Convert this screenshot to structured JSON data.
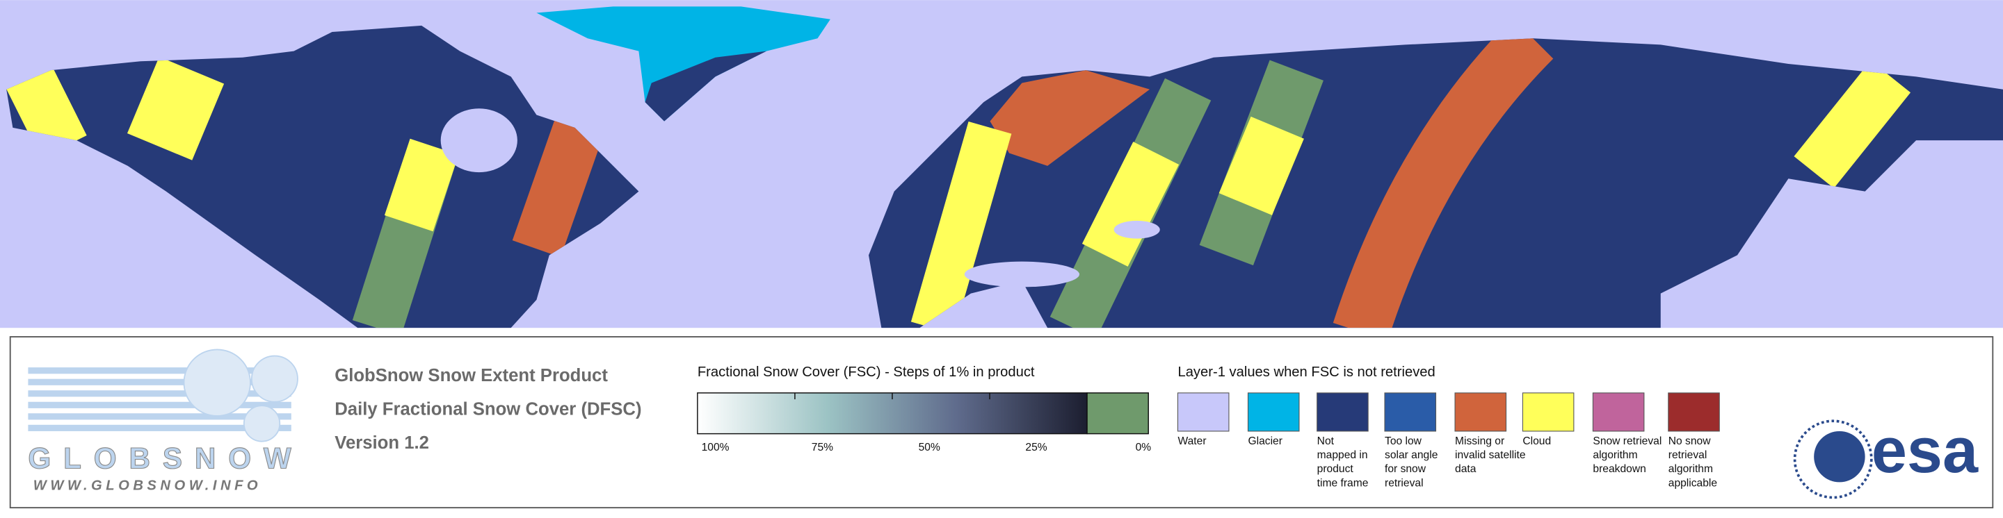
{
  "header": {
    "lines": [
      "GlobSnow Snow Extent Product",
      "Daily Fractional Snow Cover (DFSC)",
      "Version 1.2"
    ]
  },
  "colorbar": {
    "title": "Fractional Snow Cover (FSC) - Steps of 1% in product",
    "ticks": [
      "100%",
      "75%",
      "50%",
      "25%",
      "0%"
    ],
    "colors": [
      "#ffffff",
      "#9cc3c4",
      "#5f6b8c",
      "#1c1e30"
    ],
    "no_snow_color": "#6f9a6c"
  },
  "layer1": {
    "title": "Layer-1 values when FSC is not retrieved",
    "items": [
      {
        "label": [
          "Water"
        ],
        "color": "#c8c8fa"
      },
      {
        "label": [
          "Glacier"
        ],
        "color": "#00b4e6"
      },
      {
        "label": [
          "Not",
          "mapped in",
          "product",
          "time frame"
        ],
        "color": "#263a78"
      },
      {
        "label": [
          "Too low",
          "solar angle",
          "for snow",
          "retrieval"
        ],
        "color": "#2a5ca8"
      },
      {
        "label": [
          "Missing or",
          "invalid satellite",
          "data"
        ],
        "color": "#d0643c"
      },
      {
        "label": [
          "Cloud"
        ],
        "color": "#ffff5a"
      },
      {
        "label": [
          "Snow retrieval",
          "algorithm",
          "breakdown"
        ],
        "color": "#c0649c"
      },
      {
        "label": [
          "No snow",
          "retrieval",
          "algorithm",
          "applicable"
        ],
        "color": "#9c2c2c"
      }
    ]
  },
  "logo": {
    "name": "GLOBSNOW",
    "url": "WWW.GLOBSNOW.INFO"
  },
  "esa": "esa"
}
